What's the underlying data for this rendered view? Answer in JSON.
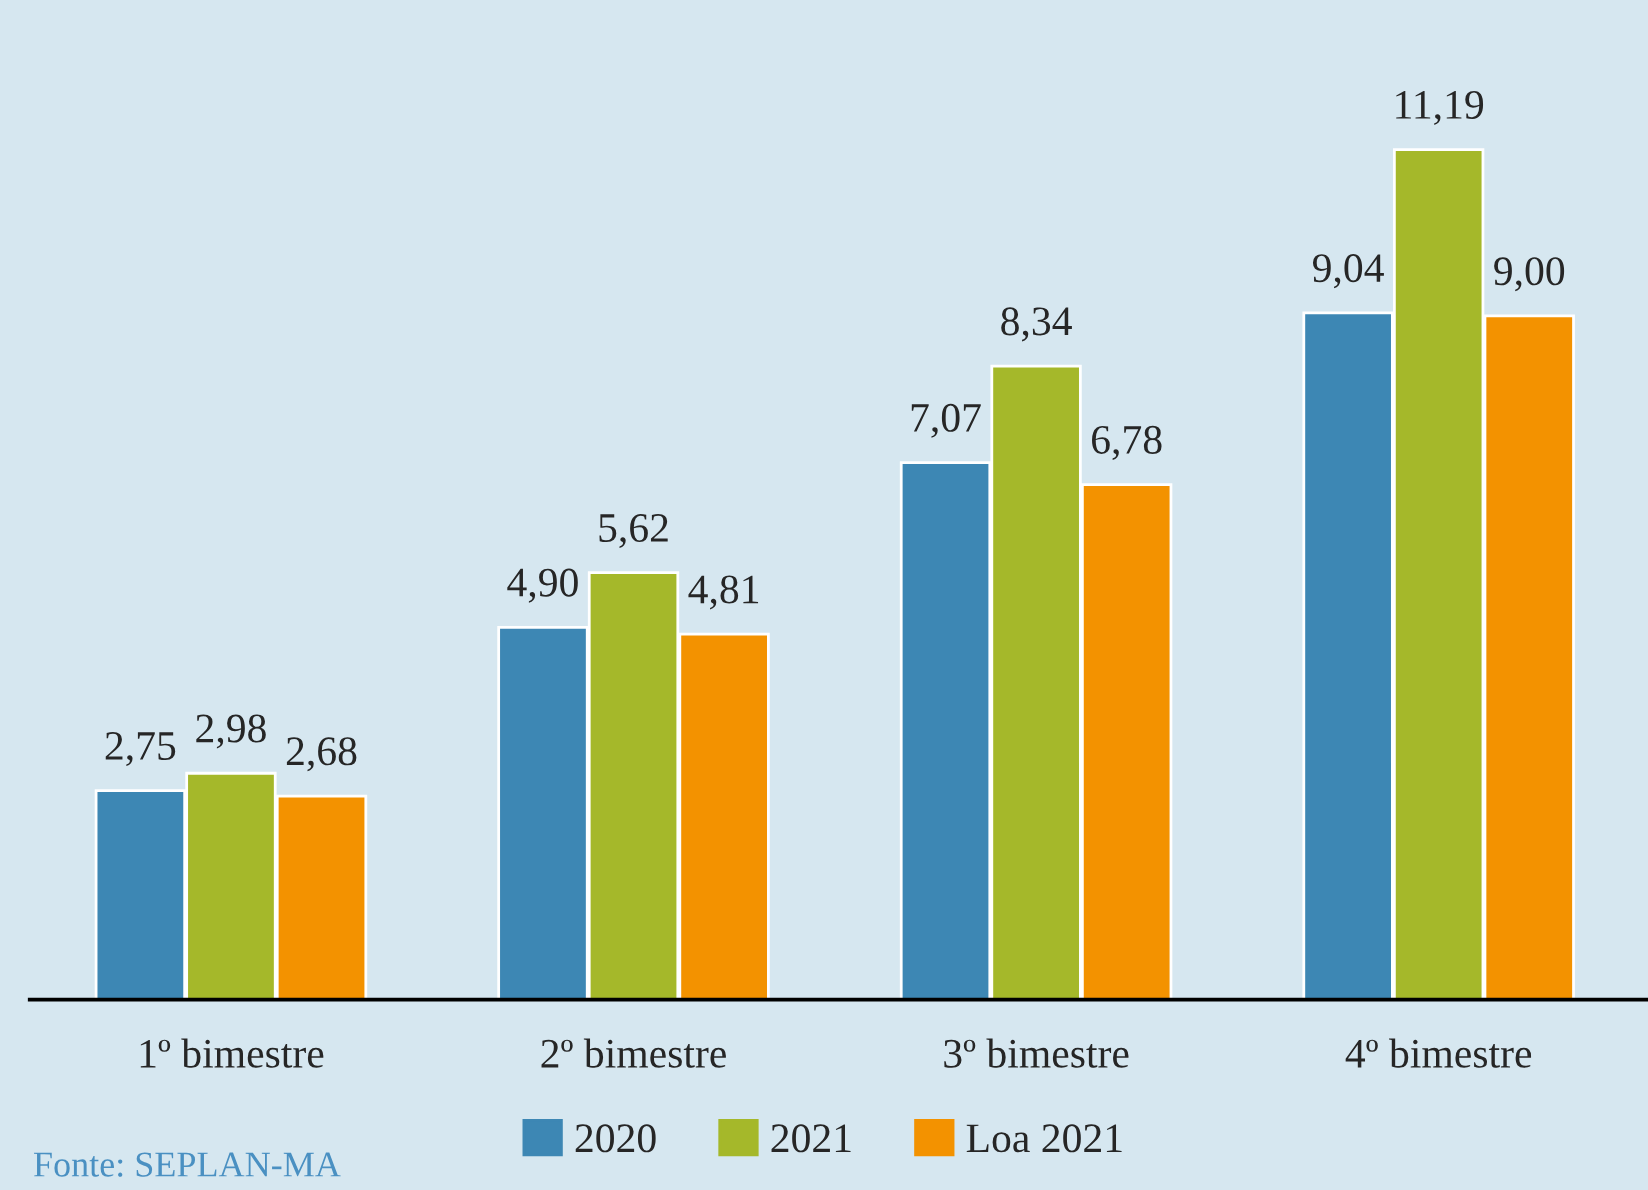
{
  "chart_data": {
    "type": "bar",
    "categories": [
      "1º bimestre",
      "2º bimestre",
      "3º bimestre",
      "4º bimestre"
    ],
    "series": [
      {
        "name": "2020",
        "color": "#3d87b4",
        "values": [
          2.75,
          4.9,
          7.07,
          9.04
        ],
        "value_labels": [
          "2,75",
          "4,90",
          "7,07",
          "9,04"
        ]
      },
      {
        "name": "2021",
        "color": "#a5b82a",
        "values": [
          2.98,
          5.62,
          8.34,
          11.19
        ],
        "value_labels": [
          "2,98",
          "5,62",
          "8,34",
          "11,19"
        ]
      },
      {
        "name": "Loa 2021",
        "color": "#f39200",
        "values": [
          2.68,
          4.81,
          6.78,
          9.0
        ],
        "value_labels": [
          "2,68",
          "4,81",
          "6,78",
          "9,00"
        ]
      }
    ],
    "legend": "bottom",
    "grid": false,
    "tick_labels": "x",
    "annotations": [
      "Fonte: SEPLAN-MA"
    ]
  }
}
